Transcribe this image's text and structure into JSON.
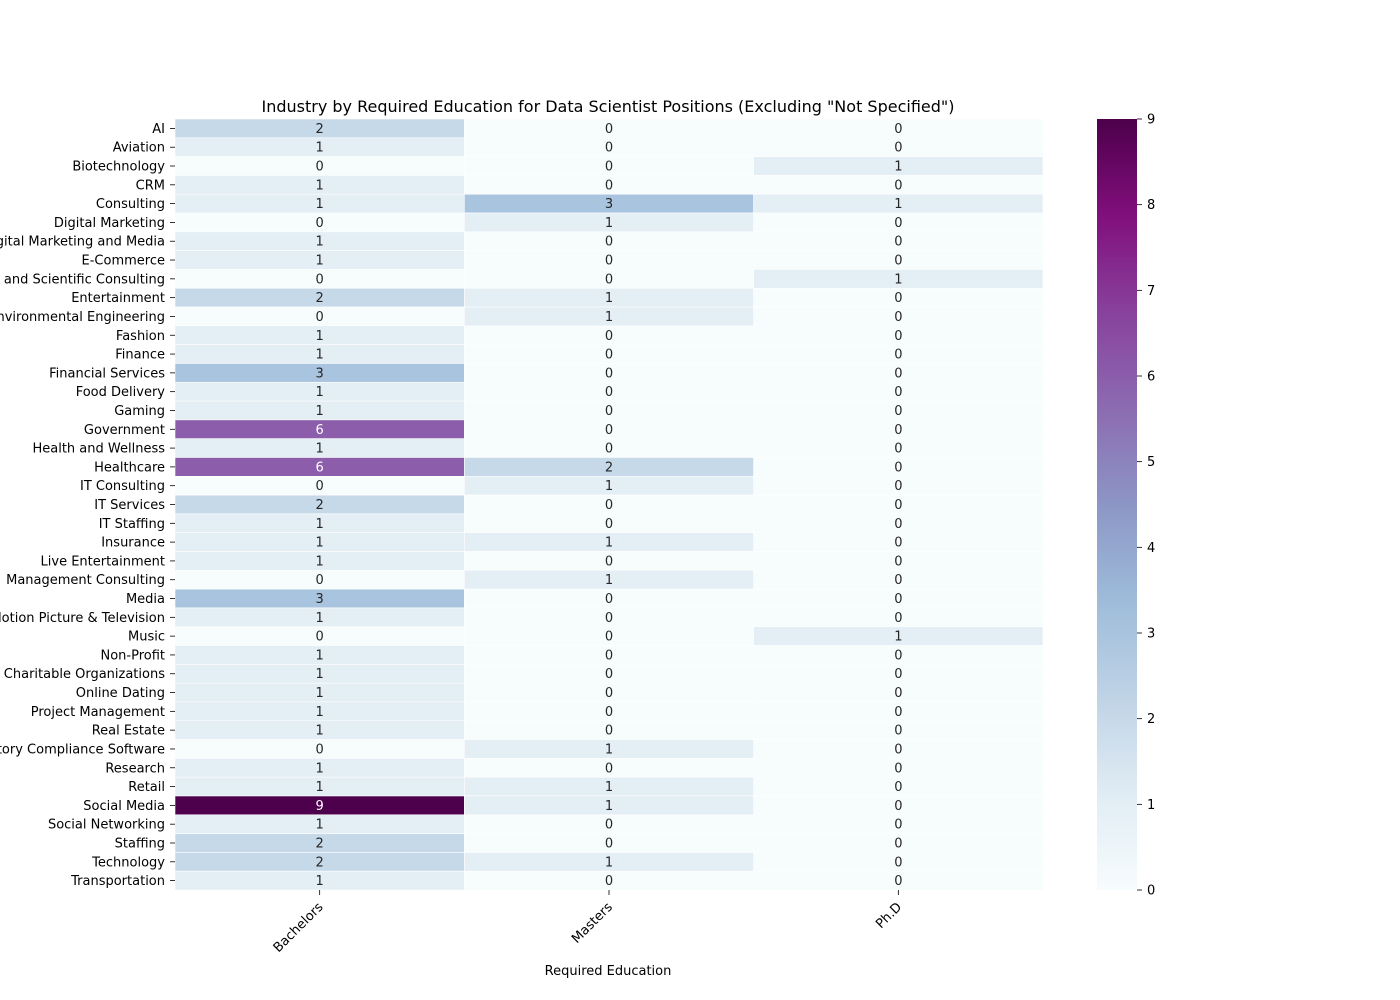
{
  "chart_data": {
    "type": "heatmap",
    "title": "Industry by Required Education for Data Scientist Positions (Excluding \"Not Specified\")",
    "xlabel": "Required Education",
    "ylabel": "",
    "columns": [
      "Bachelors",
      "Masters",
      "Ph.D"
    ],
    "rows": [
      "AI",
      "Aviation",
      "Biotechnology",
      "CRM",
      "Consulting",
      "Digital Marketing",
      "Digital Marketing and Media",
      "E-Commerce",
      "Engineering and Scientific Consulting",
      "Entertainment",
      "Environmental Engineering",
      "Fashion",
      "Finance",
      "Financial Services",
      "Food Delivery",
      "Gaming",
      "Government",
      "Health and Wellness",
      "Healthcare",
      "IT Consulting",
      "IT Services",
      "IT Staffing",
      "Insurance",
      "Live Entertainment",
      "Management Consulting",
      "Media",
      "Motion Picture & Television",
      "Music",
      "Non-Profit",
      "Non-Profit Charitable Organizations",
      "Online Dating",
      "Project Management",
      "Real Estate",
      "Regulatory Compliance Software",
      "Research",
      "Retail",
      "Social Media",
      "Social Networking",
      "Staffing",
      "Technology",
      "Transportation"
    ],
    "values": [
      [
        2,
        0,
        0
      ],
      [
        1,
        0,
        0
      ],
      [
        0,
        0,
        1
      ],
      [
        1,
        0,
        0
      ],
      [
        1,
        3,
        1
      ],
      [
        0,
        1,
        0
      ],
      [
        1,
        0,
        0
      ],
      [
        1,
        0,
        0
      ],
      [
        0,
        0,
        1
      ],
      [
        2,
        1,
        0
      ],
      [
        0,
        1,
        0
      ],
      [
        1,
        0,
        0
      ],
      [
        1,
        0,
        0
      ],
      [
        3,
        0,
        0
      ],
      [
        1,
        0,
        0
      ],
      [
        1,
        0,
        0
      ],
      [
        6,
        0,
        0
      ],
      [
        1,
        0,
        0
      ],
      [
        6,
        2,
        0
      ],
      [
        0,
        1,
        0
      ],
      [
        2,
        0,
        0
      ],
      [
        1,
        0,
        0
      ],
      [
        1,
        1,
        0
      ],
      [
        1,
        0,
        0
      ],
      [
        0,
        1,
        0
      ],
      [
        3,
        0,
        0
      ],
      [
        1,
        0,
        0
      ],
      [
        0,
        0,
        1
      ],
      [
        1,
        0,
        0
      ],
      [
        1,
        0,
        0
      ],
      [
        1,
        0,
        0
      ],
      [
        1,
        0,
        0
      ],
      [
        1,
        0,
        0
      ],
      [
        0,
        1,
        0
      ],
      [
        1,
        0,
        0
      ],
      [
        1,
        1,
        0
      ],
      [
        9,
        1,
        0
      ],
      [
        1,
        0,
        0
      ],
      [
        2,
        0,
        0
      ],
      [
        2,
        1,
        0
      ],
      [
        1,
        0,
        0
      ]
    ],
    "colorbar": {
      "min": 0,
      "max": 9,
      "ticks": [
        0,
        1,
        2,
        3,
        4,
        5,
        6,
        7,
        8,
        9
      ]
    },
    "colormap": "BuPu",
    "colors": {
      "stops": [
        "#f7fcfd",
        "#e0ecf4",
        "#bfd3e6",
        "#9ebcda",
        "#8c96c6",
        "#8c6bb1",
        "#88419d",
        "#810f7c",
        "#4d004b"
      ],
      "text_dark": "#262626",
      "text_light": "#ffffff"
    }
  }
}
